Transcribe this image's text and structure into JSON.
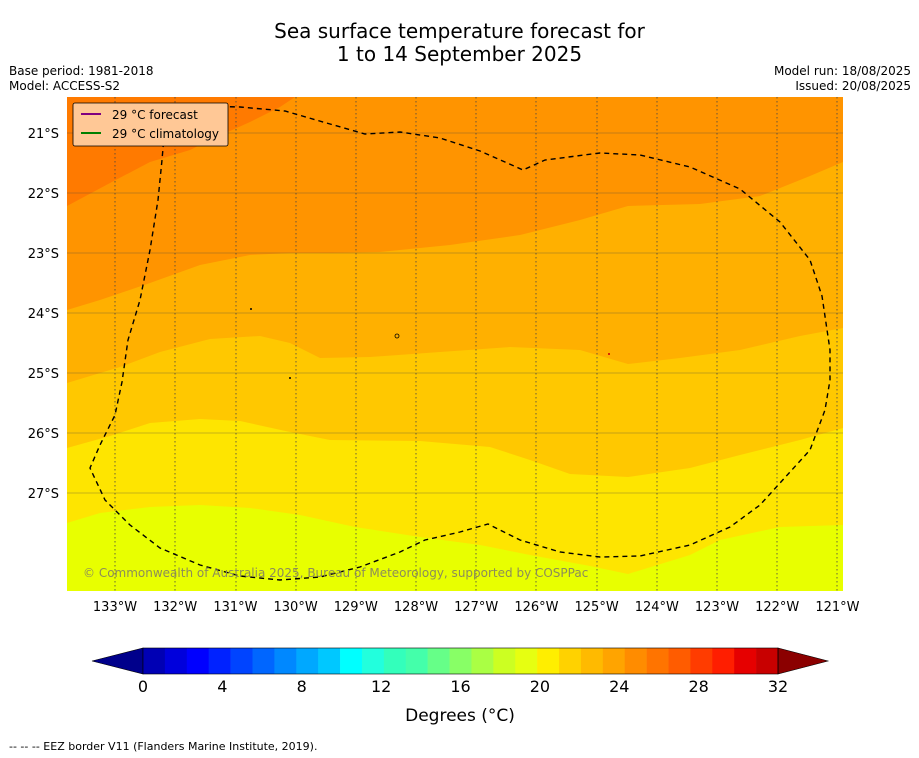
{
  "title_line1": "Sea surface temperature forecast for",
  "title_line2": "1 to 14 September 2025",
  "base_period": "Base period: 1981-2018",
  "model": "Model: ACCESS-S2",
  "model_run": "Model run: 18/08/2025",
  "issued": "Issued: 20/08/2025",
  "legend": {
    "forecast_label": "29 °C  forecast",
    "climatology_label": "29 °C  climatology",
    "forecast_color": "#800080",
    "climatology_color": "#008000"
  },
  "lat_ticks": [
    "21°S",
    "22°S",
    "23°S",
    "24°S",
    "25°S",
    "26°S",
    "27°S"
  ],
  "lon_ticks": [
    "133°W",
    "132°W",
    "131°W",
    "130°W",
    "129°W",
    "128°W",
    "127°W",
    "126°W",
    "125°W",
    "124°W",
    "123°W",
    "122°W",
    "121°W"
  ],
  "copyright": "© Commonwealth of Australia 2025, Bureau of Meteorology, supported by COSPPac",
  "colorbar": {
    "ticks": [
      "0",
      "4",
      "8",
      "12",
      "16",
      "20",
      "24",
      "28",
      "32"
    ],
    "label": "Degrees (°C)",
    "colors": [
      "#00008b",
      "#0000b4",
      "#0000dc",
      "#0000ff",
      "#0022ff",
      "#0044ff",
      "#0066ff",
      "#0088ff",
      "#00a8ff",
      "#00c8ff",
      "#00ffff",
      "#22ffdd",
      "#33ffbb",
      "#44ffaa",
      "#66ff88",
      "#88ff66",
      "#aaff44",
      "#ccff22",
      "#e6ff11",
      "#ffee00",
      "#ffd200",
      "#ffba00",
      "#ffa400",
      "#ff8c00",
      "#ff7400",
      "#ff5c00",
      "#ff3c00",
      "#ff1e00",
      "#e60000",
      "#c80000",
      "#8b0000"
    ]
  },
  "footer": "--  --  -- EEZ border V11 (Flanders Marine Institute, 2019)."
}
